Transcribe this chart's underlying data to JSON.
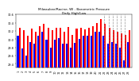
{
  "title": "Milwaukee/Racine, WI - Barometric Pressure",
  "subtitle": "Daily High/Low",
  "background_color": "#ffffff",
  "high_color": "#ff0000",
  "low_color": "#0000ff",
  "ylim": [
    29.3,
    30.6
  ],
  "ytick_values": [
    29.4,
    29.6,
    29.8,
    30.0,
    30.2,
    30.4,
    30.6
  ],
  "ytick_labels": [
    "29.4",
    "29.6",
    "29.8",
    "30.0",
    "30.2",
    "30.4",
    "30.6"
  ],
  "days": [
    "1",
    "2",
    "3",
    "4",
    "5",
    "6",
    "7",
    "8",
    "9",
    "10",
    "11",
    "12",
    "13",
    "14",
    "15",
    "16",
    "17",
    "18",
    "19",
    "20",
    "21",
    "22",
    "23",
    "24",
    "25",
    "26",
    "27",
    "28"
  ],
  "highs": [
    30.28,
    30.22,
    30.08,
    30.26,
    30.18,
    30.32,
    30.38,
    30.28,
    30.22,
    30.28,
    30.28,
    30.18,
    30.3,
    30.1,
    30.26,
    30.28,
    30.24,
    30.28,
    30.32,
    30.4,
    30.48,
    30.38,
    30.28,
    30.22,
    30.18,
    30.14,
    30.1,
    30.22
  ],
  "lows": [
    30.08,
    29.78,
    29.6,
    29.92,
    29.88,
    30.08,
    30.18,
    29.98,
    29.8,
    29.98,
    30.02,
    29.88,
    29.88,
    29.8,
    29.9,
    30.0,
    30.08,
    30.08,
    30.08,
    30.18,
    30.18,
    30.08,
    29.88,
    29.92,
    29.88,
    29.8,
    29.48,
    29.92
  ],
  "dashed_days": [
    22,
    23,
    24,
    25,
    26,
    27
  ],
  "bar_width": 0.4,
  "title_fontsize": 3.0,
  "tick_fontsize": 2.5
}
